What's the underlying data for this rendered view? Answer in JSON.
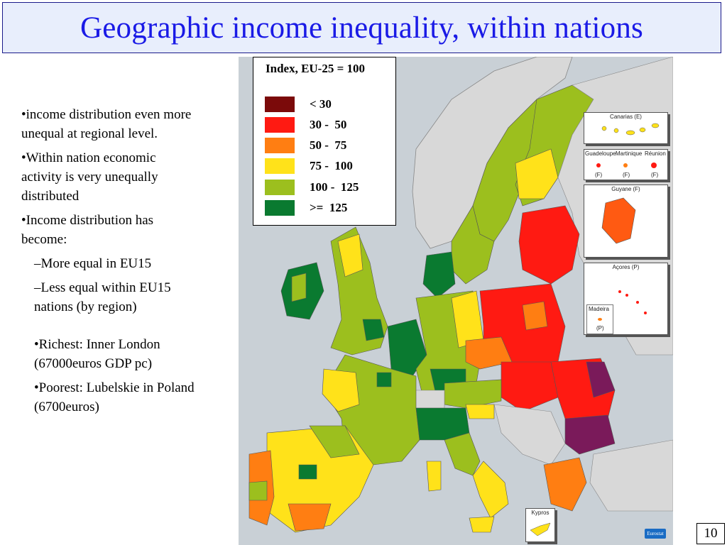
{
  "title": "Geographic income inequality, within nations",
  "bullets": {
    "b1": "•income distribution even more unequal at regional level.",
    "b2": "•Within nation economic activity is very unequally distributed",
    "b3": "•Income distribution has become:",
    "b3a": "–More equal in EU15",
    "b3b": "–Less equal within EU15 nations (by region)",
    "b4": "•Richest: Inner London (67000euros GDP pc)",
    "b5": "•Poorest: Lubelskie in Poland (6700euros)"
  },
  "legend": {
    "title": "Index, EU-25 = 100",
    "items": [
      {
        "label": "< 30",
        "color": "#7b0a0a"
      },
      {
        "label": "30 -  50",
        "color": "#ff1a12"
      },
      {
        "label": "50 -  75",
        "color": "#ff7e12"
      },
      {
        "label": "75 -  100",
        "color": "#ffe21a"
      },
      {
        "label": "100 -  125",
        "color": "#9cbf1e"
      },
      {
        "label": ">=  125",
        "color": "#0a7a30"
      }
    ]
  },
  "insets": {
    "canarias": "Canarias (E)",
    "guadeloupe": "Guadeloupe",
    "martinique": "Martinique",
    "reunion": "Réunion",
    "f1": "(F)",
    "f2": "(F)",
    "f3": "(F)",
    "guyane": "Guyane (F)",
    "acores": "Açores (P)",
    "madeira": "Madeira",
    "madeira_p": "(P)",
    "kypros": "Kypros"
  },
  "logo_text": "Eurostat",
  "page_number": "10"
}
